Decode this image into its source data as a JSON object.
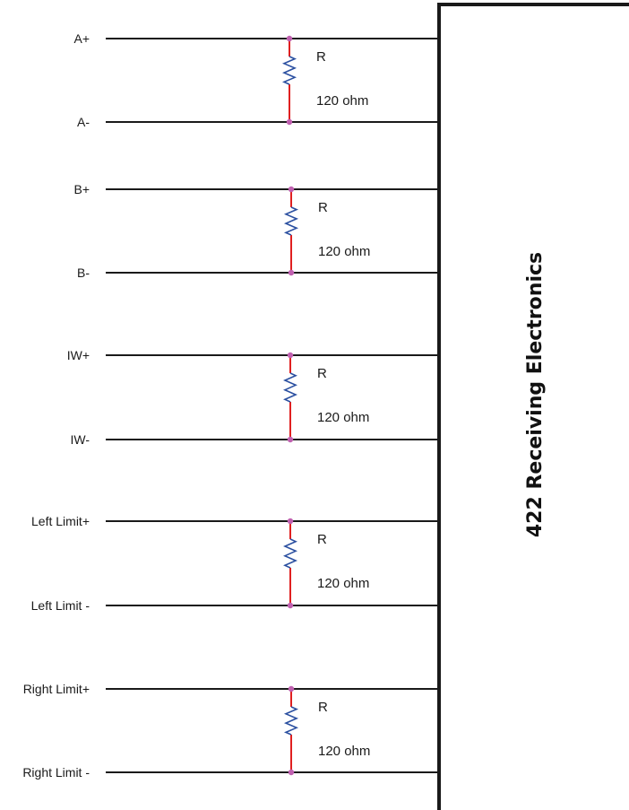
{
  "receiver": {
    "title": "422 Receiving Electronics"
  },
  "resistor_label": "R",
  "resistor_value": "120 ohm",
  "pairs": [
    {
      "pos": "A+",
      "neg": "A-"
    },
    {
      "pos": "B+",
      "neg": "B-"
    },
    {
      "pos": "IW+",
      "neg": "IW-"
    },
    {
      "pos": "Left Limit+",
      "neg": "Left Limit -"
    },
    {
      "pos": "Right Limit+",
      "neg": "Right Limit -"
    }
  ],
  "colors": {
    "wire": "#1a1a1a",
    "lead": "#e02020",
    "zigzag": "#2a4fa0",
    "node": "#c060b0"
  }
}
